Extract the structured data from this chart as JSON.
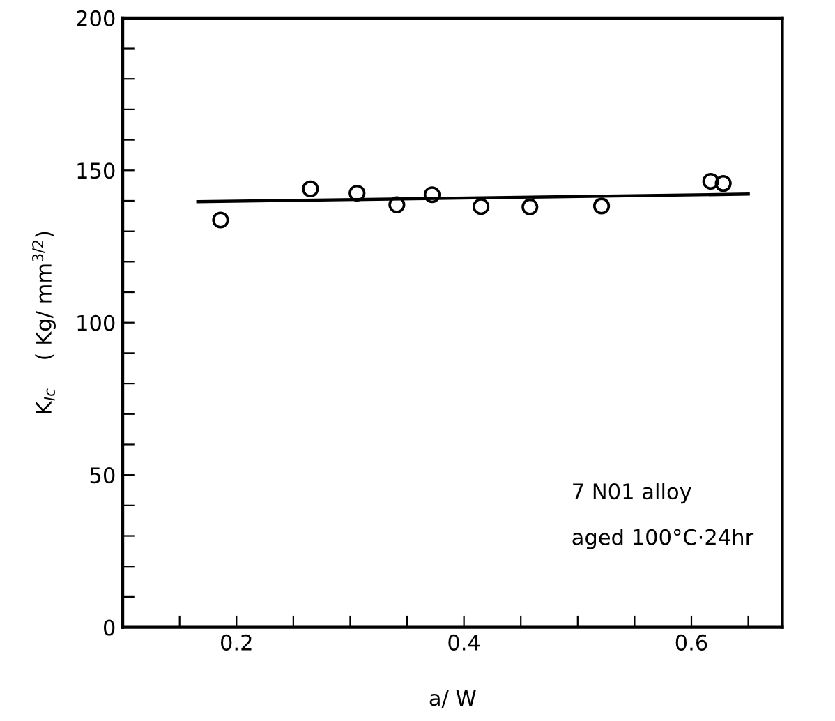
{
  "chart_data": {
    "type": "scatter",
    "xlabel": "a/ W",
    "ylabel": "K$_{Ic}$    ( Kg/ mm$^{3/2}$)",
    "xlim": [
      0.1,
      0.68
    ],
    "ylim": [
      0,
      200
    ],
    "xticks": [
      {
        "value": 0.15,
        "label": null
      },
      0.2,
      {
        "value": 0.25,
        "label": null
      },
      {
        "value": 0.3,
        "label": null
      },
      {
        "value": 0.35,
        "label": null
      },
      0.4,
      {
        "value": 0.45,
        "label": null
      },
      {
        "value": 0.5,
        "label": null
      },
      {
        "value": 0.55,
        "label": null
      },
      0.6,
      {
        "value": 0.65,
        "label": null
      }
    ],
    "yticks": [
      0,
      {
        "value": 10,
        "label": null
      },
      {
        "value": 20,
        "label": null
      },
      {
        "value": 30,
        "label": null
      },
      {
        "value": 40,
        "label": null
      },
      50,
      {
        "value": 60,
        "label": null
      },
      {
        "value": 70,
        "label": null
      },
      {
        "value": 80,
        "label": null
      },
      {
        "value": 90,
        "label": null
      },
      100,
      {
        "value": 110,
        "label": null
      },
      {
        "value": 120,
        "label": null
      },
      {
        "value": 130,
        "label": null
      },
      {
        "value": 140,
        "label": null
      },
      150,
      {
        "value": 160,
        "label": null
      },
      {
        "value": 170,
        "label": null
      },
      {
        "value": 180,
        "label": null
      },
      {
        "value": 190,
        "label": null
      },
      200
    ],
    "series": [
      {
        "marker": "circle",
        "color": "#000000",
        "x": [
          0.186,
          0.265,
          0.306,
          0.341,
          0.372,
          0.415,
          0.458,
          0.521,
          0.617,
          0.628
        ],
        "values": [
          133.7,
          143.9,
          142.5,
          138.7,
          142.0,
          138.1,
          138.0,
          138.3,
          146.4,
          145.7
        ]
      },
      {
        "type": "line",
        "marker": "none",
        "color": "#000000",
        "x": [
          0.166,
          0.65
        ],
        "values": [
          139.7,
          142.2
        ]
      }
    ],
    "annotations": [
      "7 N01 alloy",
      "aged 100°C·24hr"
    ]
  }
}
